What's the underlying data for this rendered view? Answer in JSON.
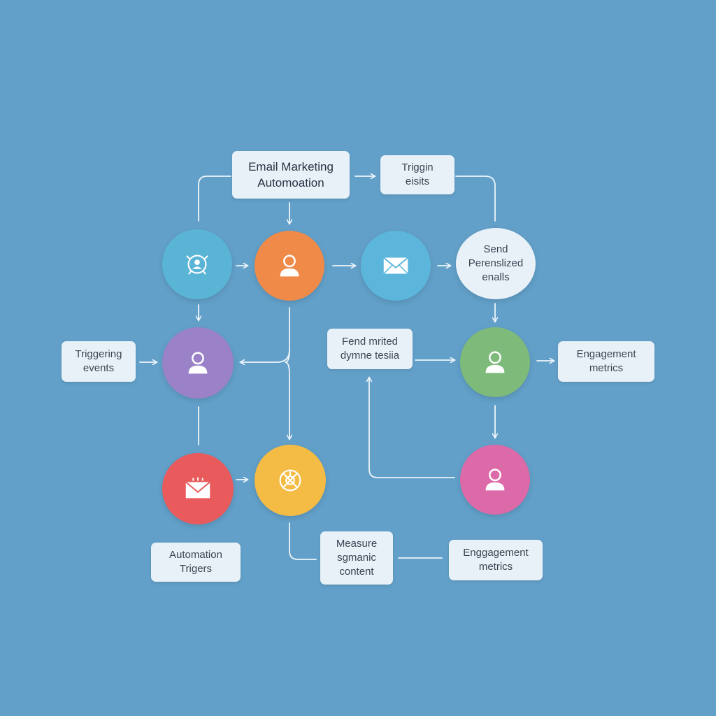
{
  "diagram": {
    "labels": {
      "title": "Email Marketing\nAutomoation",
      "trigger_events_top": "Triggin\neisits",
      "send_personalized": "Send\nPerenslized\nenalls",
      "triggering_events": "Triggering\nevents",
      "dynamic_content": "Fend mrited\ndymne tesiia",
      "engagement_metrics_right": "Engagement\nmetrics",
      "automation_triggers": "Automation\nTrigers",
      "measure_content": "Measure\nsgmanic\ncontent",
      "engagement_metrics_bottom": "Enggagement\nmetrics"
    },
    "node_colors": {
      "segment": "#5ab4d6",
      "contact": "#f08a49",
      "email": "#5cb6dc",
      "user_purple": "#9b82c8",
      "user_green": "#7eba7a",
      "user_pink": "#dc6aa8",
      "email_red": "#e85a5c",
      "analytics_yellow": "#f5bc45"
    },
    "icons": {
      "segment": "user-target-icon",
      "contact": "user-icon",
      "email": "envelope-icon",
      "user_purple": "user-icon",
      "user_green": "user-icon",
      "user_pink": "user-icon",
      "email_red": "envelope-icon",
      "analytics_yellow": "compass-icon"
    }
  }
}
